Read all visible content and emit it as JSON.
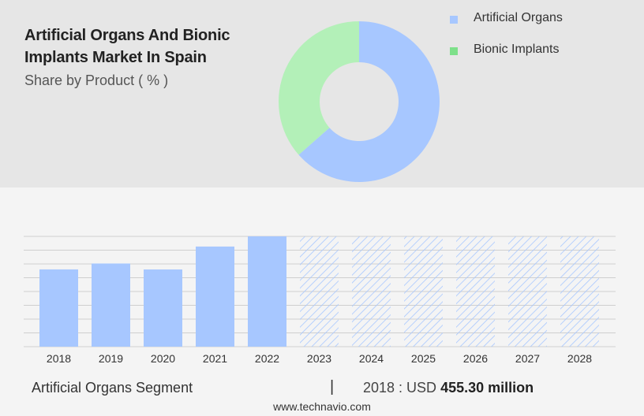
{
  "header": {
    "title": "Artificial Organs And Bionic Implants Market In Spain",
    "subtitle": "Share by Product ( % )"
  },
  "colors": {
    "artificial_organs": "#a7c7ff",
    "bionic_implants": "#b3f0b8",
    "bionic_legend": "#7ee08a",
    "grid": "#cfcfcf",
    "hatch": "#a7c7ff"
  },
  "chart_data": [
    {
      "type": "pie",
      "donut": true,
      "categories": [
        "Artificial Organs",
        "Bionic Implants"
      ],
      "values": [
        63.5,
        36.5
      ],
      "legend": {
        "position": "top-right",
        "entries": [
          "Artificial Organs",
          "Bionic Implants"
        ]
      }
    },
    {
      "type": "bar",
      "categories": [
        "2018",
        "2019",
        "2020",
        "2021",
        "2022",
        "2023",
        "2024",
        "2025",
        "2026",
        "2027",
        "2028"
      ],
      "values": [
        455.3,
        490,
        455,
        590,
        650,
        null,
        null,
        null,
        null,
        null,
        null
      ],
      "forecast_categories": [
        "2023",
        "2024",
        "2025",
        "2026",
        "2027",
        "2028"
      ],
      "ylim": [
        0,
        650
      ],
      "grid": true
    }
  ],
  "footer": {
    "segment_label": "Artificial Organs Segment",
    "separator": "|",
    "year_value_prefix": "2018 : USD",
    "year_value_bold": "455.30 million",
    "source": "www.technavio.com"
  }
}
